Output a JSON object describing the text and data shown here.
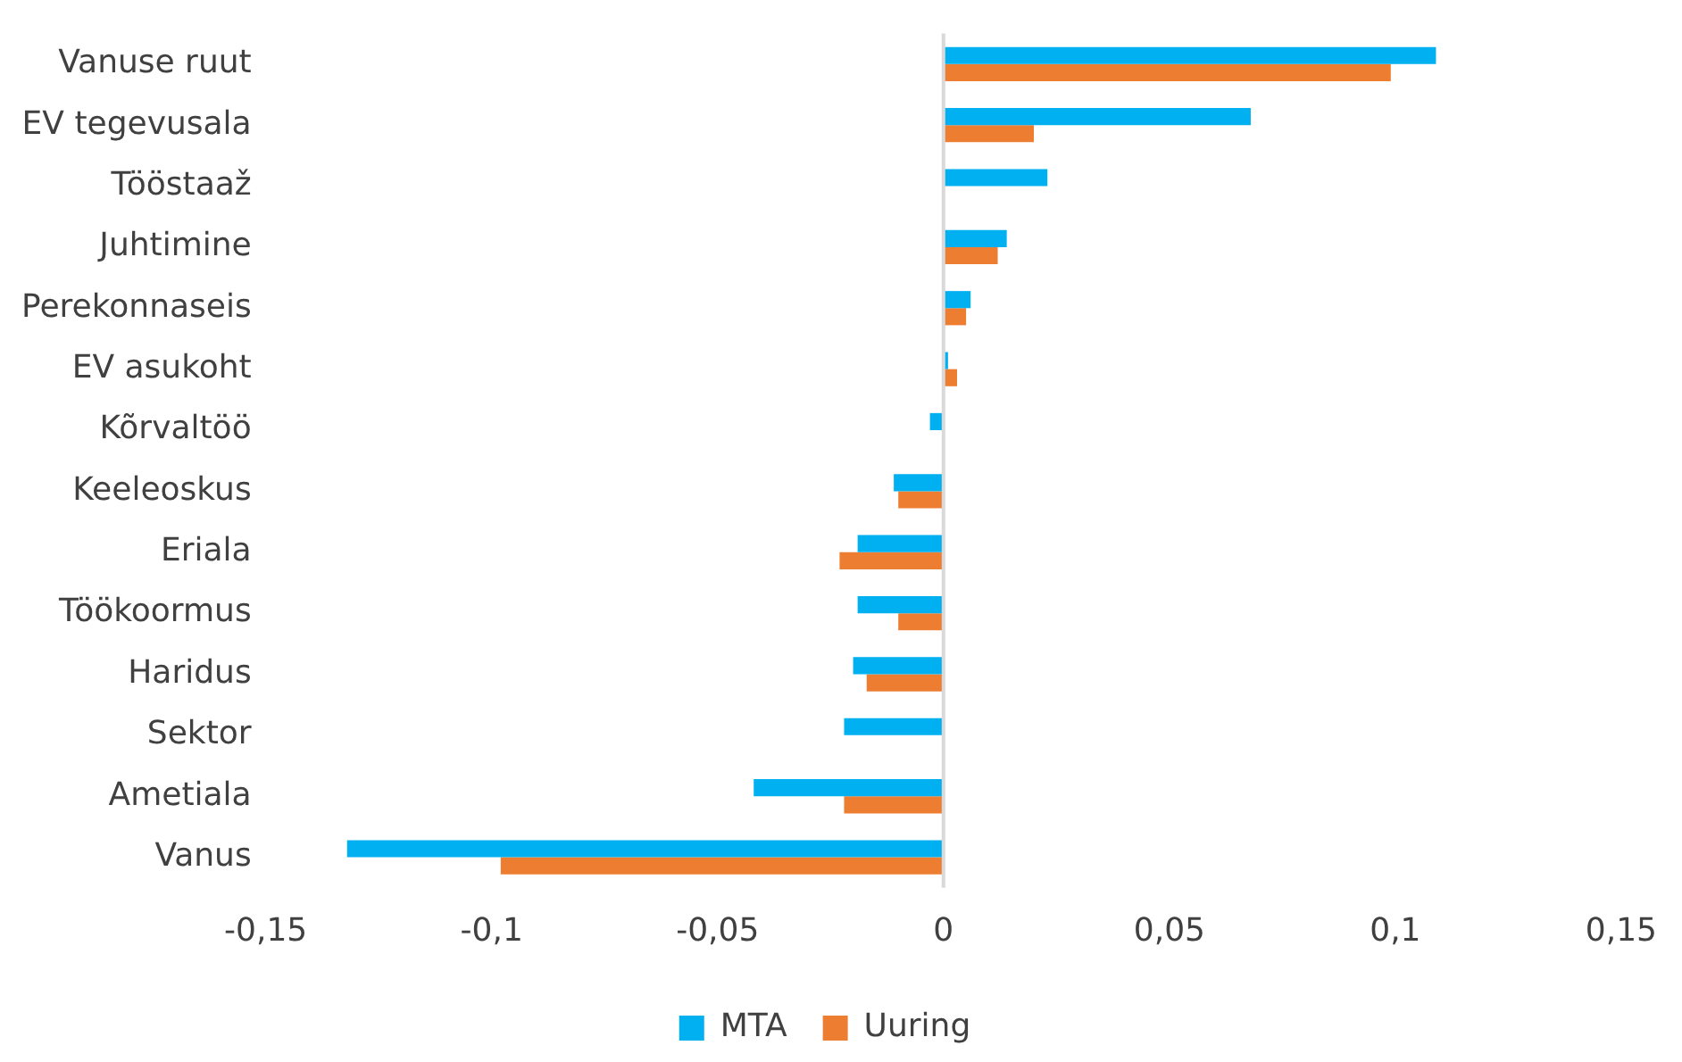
{
  "chart_data": {
    "type": "bar",
    "orientation": "horizontal",
    "categories": [
      "Vanuse ruut",
      "EV tegevusala",
      "Tööstaaž",
      "Juhtimine",
      "Perekonnaseis",
      "EV asukoht",
      "Kõrvaltöö",
      "Keeleoskus",
      "Eriala",
      "Töökoormus",
      "Haridus",
      "Sektor",
      "Ametiala",
      "Vanus"
    ],
    "series": [
      {
        "name": "MTA",
        "color": "#00b0f0",
        "values": [
          0.109,
          0.068,
          0.023,
          0.014,
          0.006,
          0.001,
          -0.003,
          -0.011,
          -0.019,
          -0.019,
          -0.02,
          -0.022,
          -0.042,
          -0.132
        ]
      },
      {
        "name": "Uuring",
        "color": "#ed7d31",
        "values": [
          0.099,
          0.02,
          null,
          0.012,
          0.005,
          0.003,
          null,
          -0.01,
          -0.023,
          -0.01,
          -0.017,
          null,
          -0.022,
          -0.098
        ]
      }
    ],
    "xlim": [
      -0.15,
      0.15
    ],
    "xticks": [
      {
        "value": -0.15,
        "label": "-0,15"
      },
      {
        "value": -0.1,
        "label": "-0,1"
      },
      {
        "value": -0.05,
        "label": "-0,05"
      },
      0,
      {
        "value": 0.05,
        "label": "0,05"
      },
      {
        "value": 0.1,
        "label": "0,1"
      },
      {
        "value": 0.15,
        "label": "0,15"
      }
    ],
    "legend": "bottom"
  }
}
